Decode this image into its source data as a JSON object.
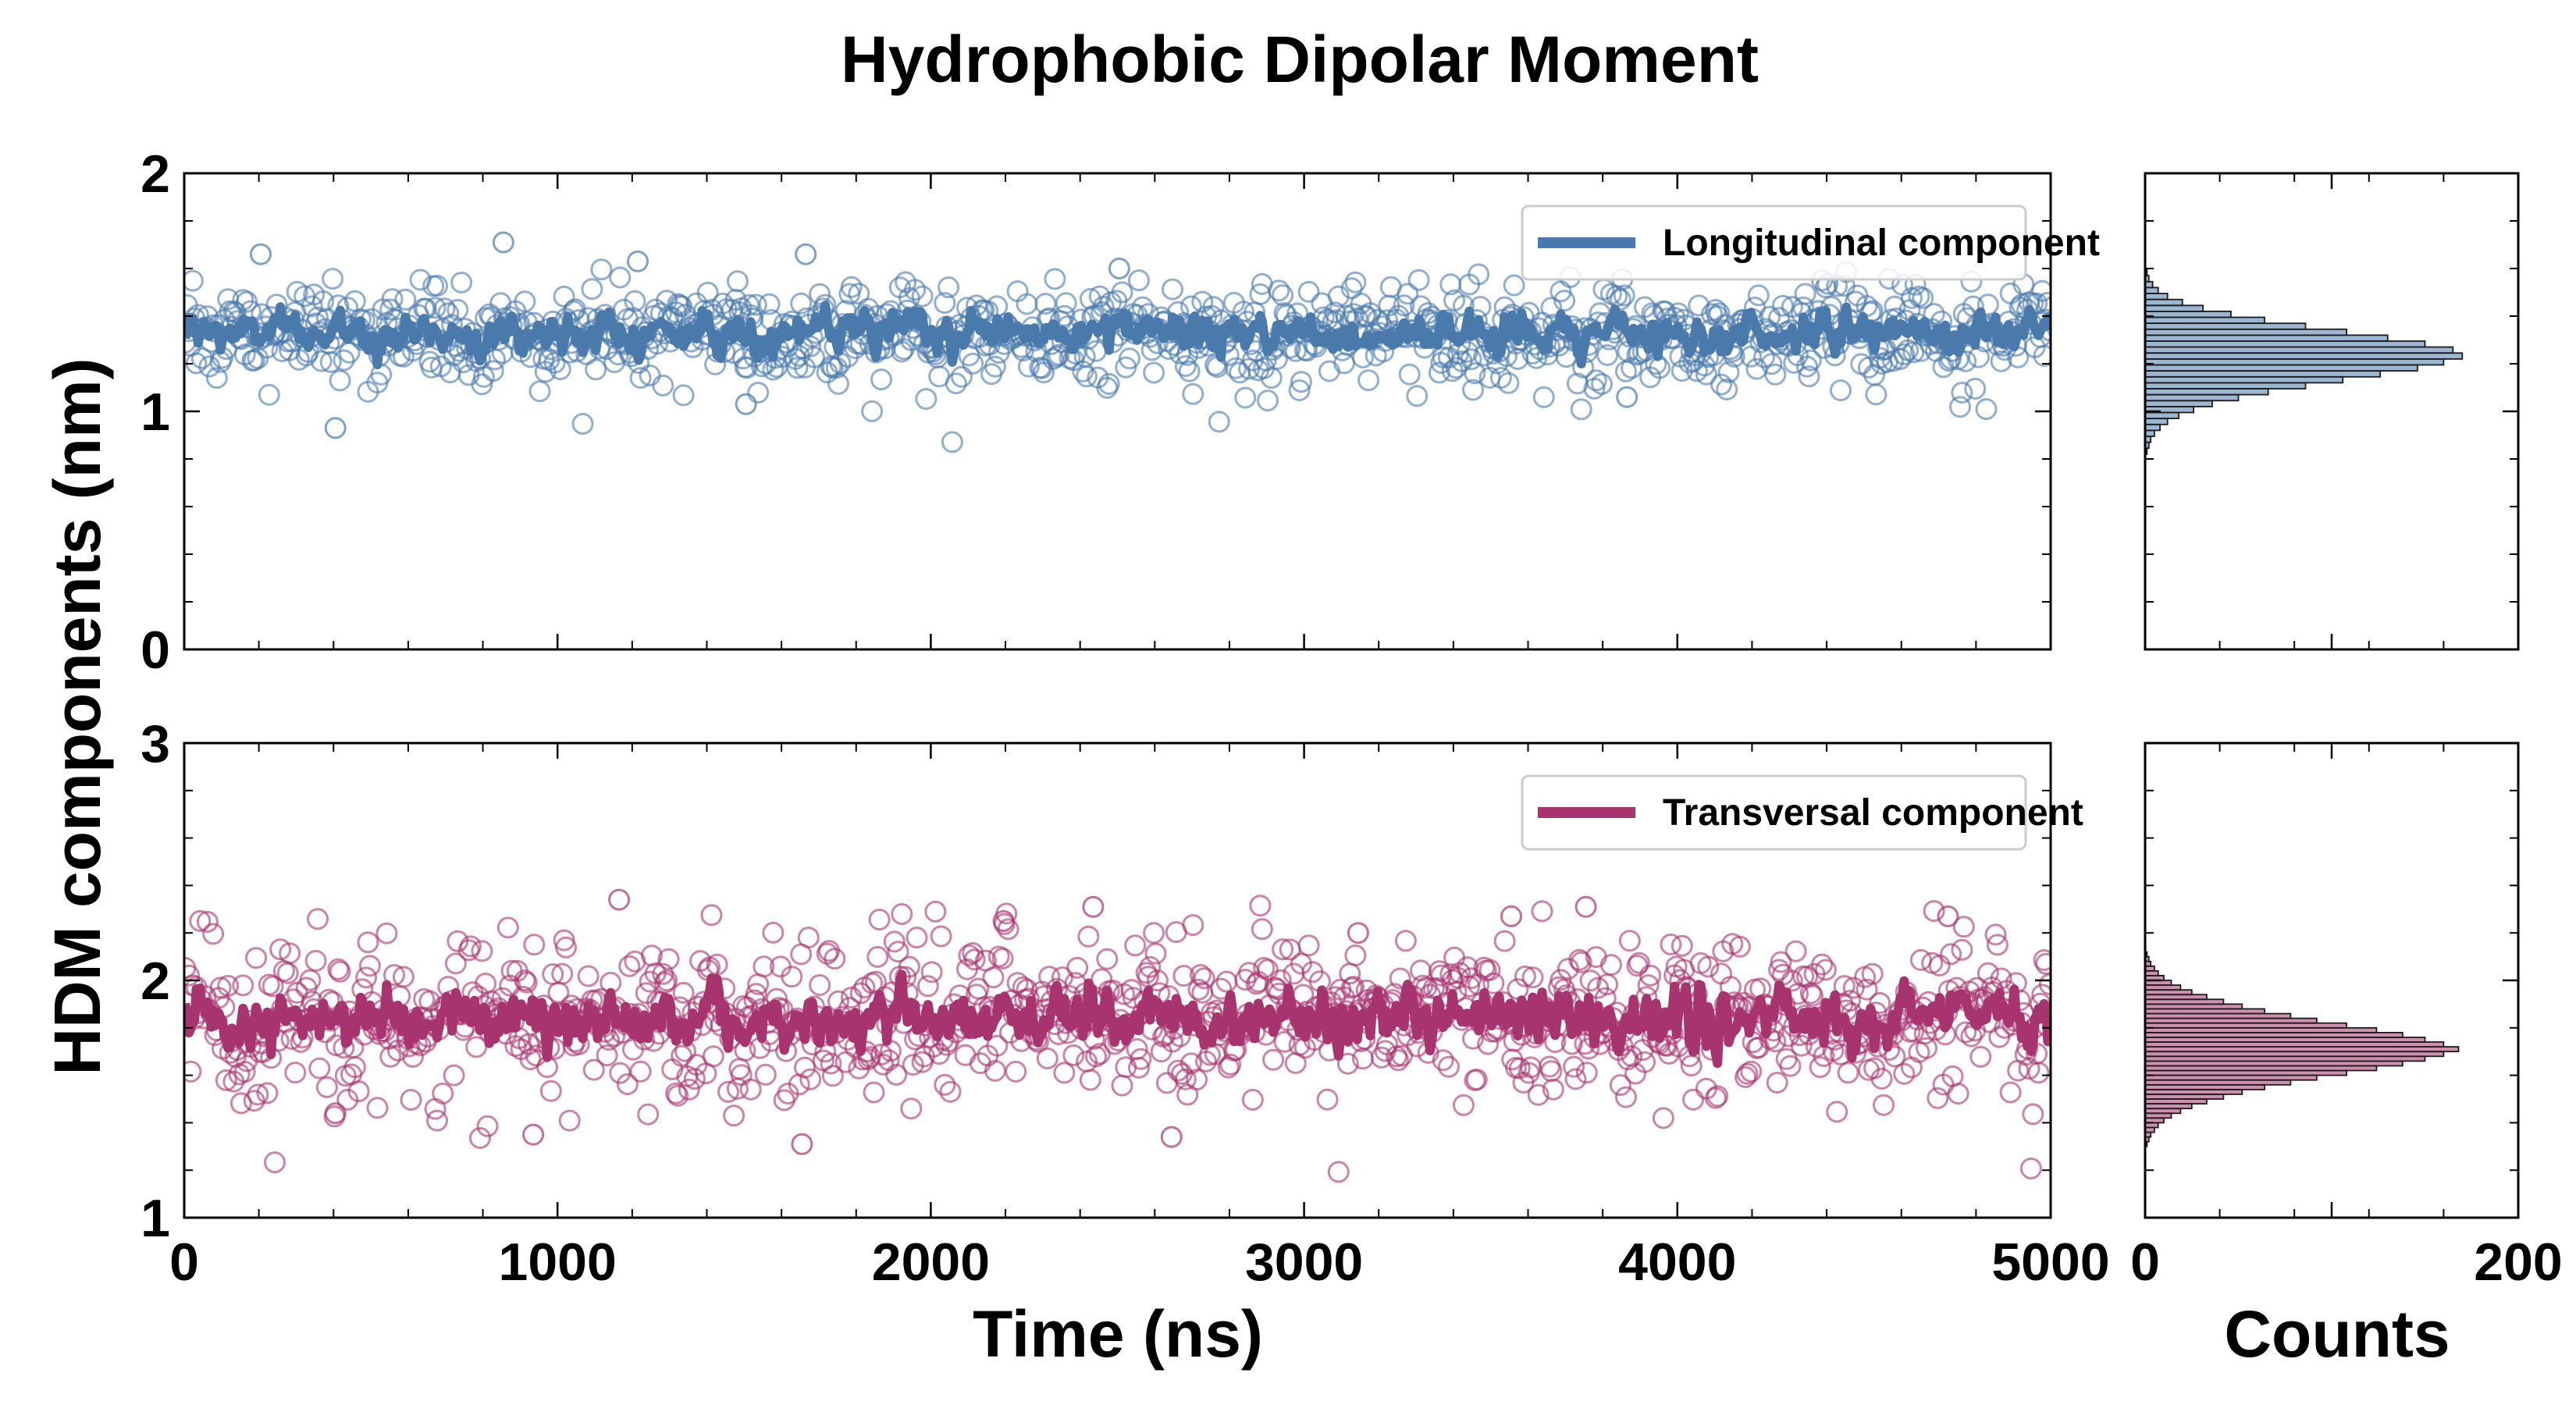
{
  "chart_data": {
    "title": "Hydrophobic Dipolar Moment",
    "ylabel": "HDM components (nm)",
    "xlabel_time": "Time (ns)",
    "xlabel_counts": "Counts",
    "time_xlim": [
      0,
      5000
    ],
    "time_xticks": [
      "0",
      "1000",
      "2000",
      "3000",
      "4000",
      "5000"
    ],
    "counts_xlim": [
      0,
      200
    ],
    "counts_xticks": [
      "0",
      "200"
    ],
    "panels": [
      {
        "type": "scatter+line",
        "legend": "Longitudinal component",
        "color": "#4a7aab",
        "ylim": [
          0,
          2
        ],
        "yticks": [
          "0",
          "1",
          "2"
        ],
        "n_points": 1000,
        "mean": 1.33,
        "scatter_std": 0.1,
        "smooth_std": 0.04,
        "outliers": [
          {
            "t": 205,
            "v": 1.66
          },
          {
            "t": 405,
            "v": 0.93
          },
          {
            "t": 855,
            "v": 1.71
          },
          {
            "t": 1665,
            "v": 1.66
          },
          {
            "t": 1505,
            "v": 1.03
          },
          {
            "t": 2505,
            "v": 1.6
          },
          {
            "t": 1215,
            "v": 1.63
          },
          {
            "t": 3865,
            "v": 1.06
          }
        ],
        "histogram": {
          "bin_start": 0.82,
          "bin_width": 0.025,
          "counts": [
            1,
            2,
            3,
            5,
            8,
            12,
            18,
            26,
            36,
            50,
            66,
            86,
            106,
            126,
            146,
            160,
            170,
            165,
            150,
            130,
            108,
            86,
            64,
            46,
            31,
            20,
            12,
            7,
            4,
            2,
            1
          ]
        }
      },
      {
        "type": "scatter+line",
        "legend": "Transversal component",
        "color": "#a8346f",
        "ylim": [
          1,
          3
        ],
        "yticks": [
          "1",
          "2",
          "3"
        ],
        "n_points": 1000,
        "mean": 1.84,
        "scatter_std": 0.16,
        "smooth_std": 0.06,
        "outliers": [
          {
            "t": 1165,
            "v": 2.34
          },
          {
            "t": 1655,
            "v": 1.31
          },
          {
            "t": 2435,
            "v": 2.31
          },
          {
            "t": 2645,
            "v": 1.34
          },
          {
            "t": 3755,
            "v": 2.31
          },
          {
            "t": 3555,
            "v": 2.27
          },
          {
            "t": 4725,
            "v": 2.27
          },
          {
            "t": 405,
            "v": 1.44
          },
          {
            "t": 935,
            "v": 1.35
          },
          {
            "t": 2195,
            "v": 2.25
          },
          {
            "t": 3145,
            "v": 2.2
          }
        ],
        "histogram": {
          "bin_start": 1.3,
          "bin_width": 0.02,
          "counts": [
            1,
            2,
            3,
            5,
            7,
            10,
            14,
            19,
            25,
            33,
            42,
            52,
            64,
            78,
            92,
            108,
            124,
            138,
            150,
            160,
            168,
            160,
            150,
            138,
            124,
            108,
            92,
            78,
            64,
            52,
            42,
            33,
            25,
            19,
            14,
            10,
            7,
            5,
            3,
            2,
            1
          ]
        }
      }
    ]
  }
}
